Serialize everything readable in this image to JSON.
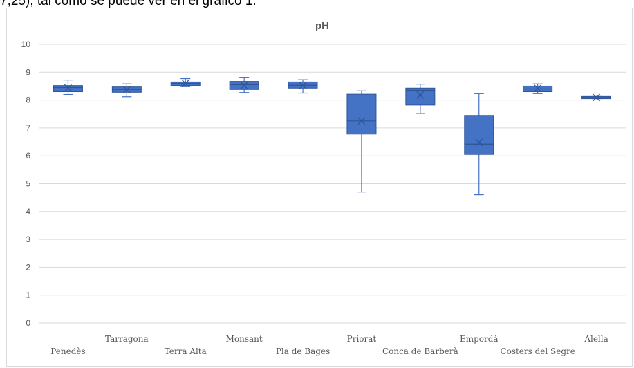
{
  "document": {
    "text_line": "7,25), tal como se puede ver en el gráfico 1."
  },
  "colors": {
    "box_fill": "#4472c4",
    "box_stroke": "#2f5597",
    "gridline": "#d9d9d9",
    "text": "#595959"
  },
  "chart_data": {
    "type": "boxplot",
    "title": "pH",
    "xlabel": "",
    "ylabel": "",
    "ylim": [
      0,
      10
    ],
    "yticks": [
      0,
      1,
      2,
      3,
      4,
      5,
      6,
      7,
      8,
      9,
      10
    ],
    "grid": true,
    "legend": "none",
    "categories": [
      "Penedès",
      "Tarragona",
      "Terra Alta",
      "Monsant",
      "Pla de Bages",
      "Priorat",
      "Conca de Barberà",
      "Empordà",
      "Costers del Segre",
      "Alella"
    ],
    "series": [
      {
        "min": [
          8.2,
          8.12,
          8.48,
          8.27,
          8.25,
          4.7,
          7.52,
          4.6,
          8.23,
          8.05
        ],
        "q1": [
          8.3,
          8.28,
          8.52,
          8.38,
          8.43,
          6.78,
          7.82,
          6.05,
          8.3,
          8.05
        ],
        "median": [
          8.45,
          8.38,
          8.6,
          8.55,
          8.53,
          7.25,
          8.35,
          6.42,
          8.4,
          8.09
        ],
        "q3": [
          8.52,
          8.47,
          8.65,
          8.67,
          8.65,
          8.21,
          8.43,
          7.45,
          8.5,
          8.13
        ],
        "max": [
          8.72,
          8.58,
          8.77,
          8.8,
          8.73,
          8.33,
          8.57,
          8.23,
          8.58,
          8.13
        ],
        "mean": [
          8.43,
          8.37,
          8.6,
          8.52,
          8.52,
          7.25,
          8.18,
          6.48,
          8.42,
          8.09
        ]
      }
    ]
  }
}
